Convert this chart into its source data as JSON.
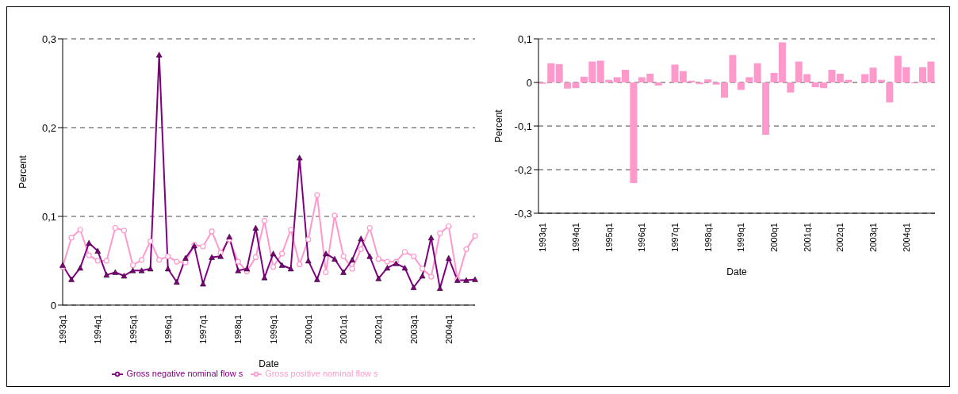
{
  "chart_data": [
    {
      "type": "line",
      "xlabel": "Date",
      "ylabel": "Percent",
      "categories": [
        "1993q1",
        null,
        null,
        null,
        "1994q1",
        null,
        null,
        null,
        "1995q1",
        null,
        null,
        null,
        "1996q1",
        null,
        null,
        null,
        "1997q1",
        null,
        null,
        null,
        "1998q1",
        null,
        null,
        null,
        "1999q1",
        null,
        null,
        null,
        "2000q1",
        null,
        null,
        null,
        "2001q1",
        null,
        null,
        null,
        "2002q1",
        null,
        null,
        null,
        "2003q1",
        null,
        null,
        null,
        "2004q1",
        null,
        null,
        null
      ],
      "series": [
        {
          "name": "Gross positive nominal flow s",
          "color": "#ff99cc",
          "marker": "circle",
          "values": [
            0.043,
            0.076,
            0.085,
            0.056,
            0.05,
            0.05,
            0.087,
            0.084,
            0.045,
            0.051,
            0.072,
            0.051,
            0.055,
            0.049,
            0.048,
            0.068,
            0.066,
            0.083,
            0.059,
            0.074,
            0.049,
            0.038,
            0.054,
            0.095,
            0.043,
            0.058,
            0.085,
            0.046,
            0.074,
            0.124,
            0.037,
            0.101,
            0.055,
            0.041,
            0.063,
            0.087,
            0.052,
            0.049,
            0.049,
            0.06,
            0.055,
            0.041,
            0.032,
            0.081,
            0.089,
            0.029,
            0.063,
            0.078
          ]
        },
        {
          "name": "Gross negative nominal flow s",
          "color": "#800080",
          "marker": "triangle",
          "values": [
            0.045,
            0.029,
            0.042,
            0.07,
            0.061,
            0.034,
            0.037,
            0.033,
            0.039,
            0.039,
            0.041,
            0.282,
            0.041,
            0.026,
            0.053,
            0.067,
            0.024,
            0.054,
            0.055,
            0.077,
            0.039,
            0.041,
            0.087,
            0.031,
            0.058,
            0.045,
            0.041,
            0.166,
            0.05,
            0.029,
            0.058,
            0.052,
            0.037,
            0.051,
            0.075,
            0.055,
            0.03,
            0.042,
            0.047,
            0.042,
            0.02,
            0.033,
            0.076,
            0.019,
            0.053,
            0.028,
            0.028,
            0.029
          ]
        }
      ],
      "ylim": [
        0,
        0.3
      ],
      "yticks": [
        0,
        {
          "value": 0.1,
          "label": "0,1"
        },
        {
          "value": 0.2,
          "label": "0,2"
        },
        {
          "value": 0.3,
          "label": "0,3"
        }
      ],
      "grid": "y",
      "legend": "bottom"
    },
    {
      "type": "bar",
      "xlabel": "Date",
      "ylabel": "Percent",
      "categories": [
        "1993q1",
        null,
        null,
        null,
        "1994q1",
        null,
        null,
        null,
        "1995q1",
        null,
        null,
        null,
        "1996q1",
        null,
        null,
        null,
        "1997q1",
        null,
        null,
        null,
        "1998q1",
        null,
        null,
        null,
        "1999q1",
        null,
        null,
        null,
        "2000q1",
        null,
        null,
        null,
        "2001q1",
        null,
        null,
        null,
        "2002q1",
        null,
        null,
        null,
        "2003q1",
        null,
        null,
        null,
        "2004q1",
        null,
        null,
        null
      ],
      "series": [
        {
          "color": "#ff99cc",
          "values": [
            -0.003,
            0.044,
            0.042,
            -0.014,
            -0.013,
            0.013,
            0.048,
            0.05,
            0.006,
            0.012,
            0.029,
            -0.231,
            0.012,
            0.02,
            -0.007,
            0,
            0.041,
            0.026,
            0.004,
            -0.004,
            0.007,
            -0.005,
            -0.035,
            0.063,
            -0.017,
            0.012,
            0.044,
            -0.12,
            0.022,
            0.092,
            -0.023,
            0.048,
            0.019,
            -0.011,
            -0.013,
            0.029,
            0.02,
            0.006,
            0,
            0.019,
            0.034,
            0.006,
            -0.046,
            0.061,
            0.035,
            -0.002,
            0.035,
            0.048
          ]
        }
      ],
      "ylim": [
        -0.3,
        0.1
      ],
      "yticks": [
        {
          "value": -0.3,
          "label": "-0,3"
        },
        {
          "value": -0.2,
          "label": "-0,2"
        },
        {
          "value": -0.1,
          "label": "-0,1"
        },
        0,
        {
          "value": 0.1,
          "label": "0,1"
        }
      ],
      "grid": "y"
    }
  ]
}
